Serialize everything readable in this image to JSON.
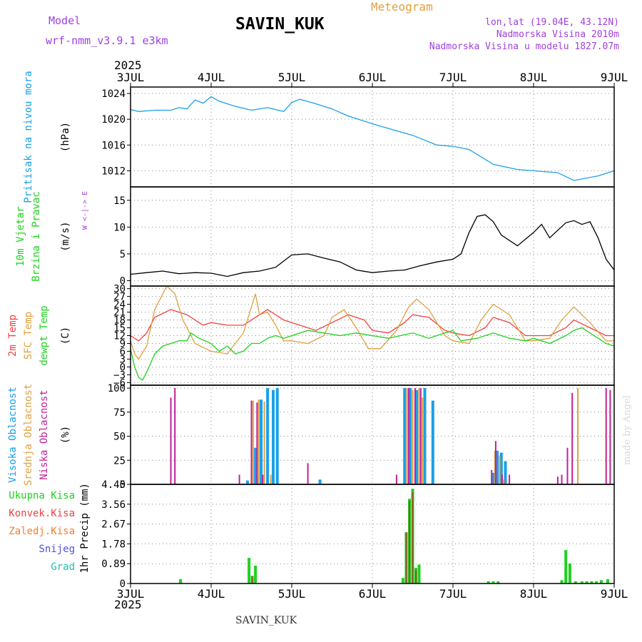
{
  "header": {
    "model_label": "Model",
    "model_name": "wrf-nmm_v3.9.1 e3km",
    "station": "SAVIN_KUK",
    "meteogram": "Meteogram",
    "coords": "lon,lat (19.04E, 43.12N)",
    "elevation": "Nadmorska Visina 2010m",
    "model_elevation": "Nadmorska Visina u modelu 1827.07m",
    "footer_station": "SAVIN_KUK",
    "credit": "made by Angel",
    "year_top": "2025",
    "year_bottom": "2025"
  },
  "colors": {
    "purple": "#a040e0",
    "blue": "#1aa0e8",
    "green": "#20d020",
    "red": "#f04040",
    "orange": "#e0a040",
    "black": "#000000",
    "grid": "#888888"
  },
  "chart_data": {
    "type": "meteogram",
    "x_ticks": [
      "3JUL",
      "4JUL",
      "5JUL",
      "6JUL",
      "7JUL",
      "8JUL",
      "9JUL"
    ],
    "x_range": [
      0,
      6
    ],
    "panels": [
      {
        "id": "pressure",
        "type": "line",
        "ylabel_lines": [
          "Pritisak na nivou mora"
        ],
        "unit": "(hPa)",
        "ylim": [
          1009.5,
          1025
        ],
        "yticks": [
          1012,
          1016,
          1020,
          1024
        ],
        "series": [
          {
            "name": "Pritisak",
            "color": "#1aa0e8",
            "x": [
              0,
              0.1,
              0.3,
              0.5,
              0.6,
              0.7,
              0.8,
              0.9,
              1.0,
              1.1,
              1.3,
              1.5,
              1.7,
              1.9,
              2.0,
              2.1,
              2.3,
              2.5,
              2.7,
              3.0,
              3.3,
              3.5,
              3.8,
              4.0,
              4.2,
              4.5,
              4.8,
              5.0,
              5.3,
              5.5,
              5.8,
              6.0
            ],
            "y": [
              1021.5,
              1021.2,
              1021.4,
              1021.4,
              1021.8,
              1021.6,
              1023.0,
              1022.5,
              1023.5,
              1022.8,
              1022.0,
              1021.4,
              1021.8,
              1021.2,
              1022.6,
              1023.1,
              1022.4,
              1021.6,
              1020.5,
              1019.3,
              1018.2,
              1017.5,
              1016.0,
              1015.8,
              1015.3,
              1013.0,
              1012.2,
              1012.0,
              1011.7,
              1010.5,
              1011.2,
              1012.0
            ]
          }
        ]
      },
      {
        "id": "wind",
        "type": "line",
        "ylabel_lines": [
          "10m Vjetar",
          "Brzina i Pravac"
        ],
        "unit": "(m/s)",
        "compass": "W <-|-> E",
        "ylim": [
          -1,
          17.5
        ],
        "yticks": [
          0,
          5,
          10,
          15
        ],
        "series": [
          {
            "name": "Brzina",
            "color": "#000000",
            "x": [
              0,
              0.2,
              0.4,
              0.6,
              0.8,
              1.0,
              1.2,
              1.4,
              1.6,
              1.8,
              2.0,
              2.2,
              2.4,
              2.6,
              2.8,
              3.0,
              3.2,
              3.4,
              3.6,
              3.8,
              4.0,
              4.1,
              4.2,
              4.3,
              4.4,
              4.5,
              4.6,
              4.8,
              5.0,
              5.1,
              5.2,
              5.4,
              5.5,
              5.6,
              5.7,
              5.8,
              5.9,
              6.0
            ],
            "y": [
              1.2,
              1.5,
              1.8,
              1.3,
              1.5,
              1.4,
              0.8,
              1.5,
              1.8,
              2.5,
              4.8,
              5.0,
              4.2,
              3.5,
              2.0,
              1.5,
              1.8,
              2.0,
              2.8,
              3.5,
              4.0,
              5.0,
              9.0,
              12.0,
              12.3,
              11.0,
              8.5,
              6.5,
              9.0,
              10.5,
              8.0,
              10.8,
              11.2,
              10.5,
              11.0,
              8.0,
              4.0,
              2.0
            ]
          }
        ]
      },
      {
        "id": "temperature",
        "type": "line",
        "ylabel_lines": [
          "2m Temp",
          "SFC Temp",
          "dewpt Temp"
        ],
        "unit": "(C)",
        "ylim": [
          -7,
          31
        ],
        "yticks": [
          -6,
          -3,
          0,
          3,
          6,
          9,
          12,
          15,
          18,
          21,
          24,
          27,
          30
        ],
        "series": [
          {
            "name": "2m Temp",
            "color": "#f04040",
            "x": [
              0,
              0.1,
              0.2,
              0.3,
              0.5,
              0.7,
              0.9,
              1.0,
              1.2,
              1.4,
              1.5,
              1.7,
              1.9,
              2.1,
              2.3,
              2.5,
              2.7,
              2.9,
              3.0,
              3.2,
              3.4,
              3.5,
              3.7,
              3.9,
              4.0,
              4.2,
              4.4,
              4.5,
              4.7,
              4.9,
              5.0,
              5.2,
              5.4,
              5.5,
              5.7,
              5.9,
              6.0
            ],
            "y": [
              12,
              10,
              13,
              19,
              22,
              20,
              16,
              17,
              16,
              16,
              18,
              22,
              18,
              16,
              14,
              17,
              20,
              18,
              14,
              13,
              17,
              20,
              19,
              14,
              13,
              12,
              15,
              19,
              17,
              12,
              12,
              12,
              15,
              18,
              15,
              12,
              12
            ]
          },
          {
            "name": "SFC Temp",
            "color": "#e0a040",
            "x": [
              0,
              0.05,
              0.1,
              0.2,
              0.3,
              0.45,
              0.55,
              0.65,
              0.8,
              1.0,
              1.2,
              1.4,
              1.55,
              1.6,
              1.7,
              1.8,
              1.9,
              2.0,
              2.2,
              2.4,
              2.5,
              2.65,
              2.8,
              2.95,
              3.1,
              3.3,
              3.45,
              3.55,
              3.7,
              3.9,
              4.0,
              4.2,
              4.35,
              4.5,
              4.7,
              4.9,
              5.0,
              5.2,
              5.35,
              5.5,
              5.7,
              5.9,
              6.0
            ],
            "y": [
              10,
              5,
              3,
              8,
              22,
              31,
              28,
              18,
              9,
              6,
              5,
              13,
              28,
              20,
              21,
              16,
              10,
              10,
              9,
              12,
              19,
              22,
              15,
              7,
              7,
              14,
              23,
              26,
              22,
              12,
              10,
              9,
              18,
              24,
              20,
              10,
              10,
              11,
              18,
              23,
              17,
              10,
              10
            ]
          },
          {
            "name": "dewpt Temp",
            "color": "#20d020",
            "x": [
              0,
              0.05,
              0.1,
              0.15,
              0.2,
              0.3,
              0.4,
              0.5,
              0.6,
              0.7,
              0.75,
              0.85,
              1.0,
              1.1,
              1.2,
              1.3,
              1.4,
              1.5,
              1.6,
              1.7,
              1.8,
              1.9,
              2.0,
              2.2,
              2.4,
              2.6,
              2.8,
              3.0,
              3.2,
              3.5,
              3.7,
              3.9,
              4.0,
              4.1,
              4.3,
              4.5,
              4.7,
              4.9,
              5.0,
              5.2,
              5.4,
              5.5,
              5.6,
              5.7,
              5.8,
              5.9,
              6.0
            ],
            "y": [
              7,
              0,
              -4,
              -5,
              -2,
              5,
              8,
              9,
              10,
              10,
              13,
              11,
              9,
              6,
              8,
              5,
              6,
              9,
              9,
              11,
              12,
              11,
              12,
              14,
              13,
              12,
              13,
              12,
              11,
              13,
              11,
              13,
              14,
              10,
              11,
              13,
              11,
              10,
              11,
              9,
              12,
              14,
              15,
              13,
              11,
              9,
              8
            ]
          }
        ]
      },
      {
        "id": "cloud",
        "type": "bar",
        "ylabel_lines": [
          "Visoka Oblacnost",
          "Srednja Oblacnost",
          "Niska Oblacnost"
        ],
        "unit": "(%)",
        "ylim": [
          0,
          103
        ],
        "yticks": [
          0,
          25,
          50,
          75,
          100
        ],
        "series": [
          {
            "name": "Visoka Oblacnost",
            "color": "#1aa0e8",
            "width": 4,
            "x": [
              1.45,
              1.55,
              1.62,
              1.7,
              1.77,
              1.82,
              2.35,
              3.4,
              3.47,
              3.55,
              3.65,
              3.75,
              4.5,
              4.55,
              4.6,
              4.65
            ],
            "y": [
              4,
              38,
              88,
              100,
              98,
              100,
              5,
              100,
              100,
              98,
              100,
              87,
              12,
              35,
              33,
              24
            ]
          },
          {
            "name": "Srednja Oblacnost",
            "color": "#e0a040",
            "width": 2,
            "x": [
              1.52,
              1.59,
              1.66,
              1.74,
              3.43,
              3.5,
              3.58,
              3.62,
              4.52,
              4.58,
              4.63,
              5.55
            ],
            "y": [
              87,
              88,
              86,
              10,
              100,
              98,
              100,
              90,
              35,
              30,
              5,
              100
            ]
          },
          {
            "name": "Niska Oblacnost",
            "color": "#c0209a",
            "width": 2,
            "x": [
              0.5,
              0.55,
              1.35,
              1.5,
              1.57,
              1.64,
              2.2,
              3.3,
              3.45,
              3.53,
              3.6,
              4.48,
              4.53,
              4.61,
              4.7,
              5.3,
              5.35,
              5.42,
              5.48,
              5.9,
              5.95
            ],
            "y": [
              90,
              100,
              10,
              87,
              85,
              10,
              22,
              10,
              100,
              100,
              100,
              15,
              45,
              10,
              10,
              8,
              10,
              38,
              95,
              100,
              98
            ]
          }
        ]
      },
      {
        "id": "precip",
        "type": "bar",
        "ylabel_lines": [
          "1hr Precip (mm)"
        ],
        "legend": [
          "Ukupna Kisa",
          "Konvek.Kisa",
          "Zaledj.Kisa",
          "Snijeg",
          "Grad"
        ],
        "ylim": [
          0,
          4.45
        ],
        "yticks": [
          0,
          0.89,
          1.78,
          2.67,
          3.56,
          4.45
        ],
        "ytick_labels": [
          "0",
          "0.89",
          "1.78",
          "2.67",
          "3.56",
          "4.45"
        ],
        "series": [
          {
            "name": "Ukupna Kisa",
            "color": "#20d020",
            "width": 4,
            "x": [
              0.62,
              1.47,
              1.51,
              1.55,
              3.38,
              3.42,
              3.46,
              3.5,
              3.54,
              3.58,
              4.44,
              4.5,
              4.56,
              5.35,
              5.4,
              5.45,
              5.52,
              5.6,
              5.66,
              5.72,
              5.78,
              5.84,
              5.92
            ],
            "y": [
              0.2,
              1.15,
              0.35,
              0.8,
              0.25,
              2.3,
              3.8,
              4.25,
              0.7,
              0.85,
              0.1,
              0.1,
              0.1,
              0.15,
              1.5,
              0.9,
              0.1,
              0.1,
              0.1,
              0.1,
              0.1,
              0.15,
              0.2
            ]
          },
          {
            "name": "Konvek.Kisa",
            "color": "#a05030",
            "width": 2,
            "x": [
              1.51,
              3.42,
              3.46,
              3.5,
              3.54
            ],
            "y": [
              0.3,
              2.3,
              3.7,
              4.1,
              0.6
            ]
          }
        ]
      }
    ]
  }
}
